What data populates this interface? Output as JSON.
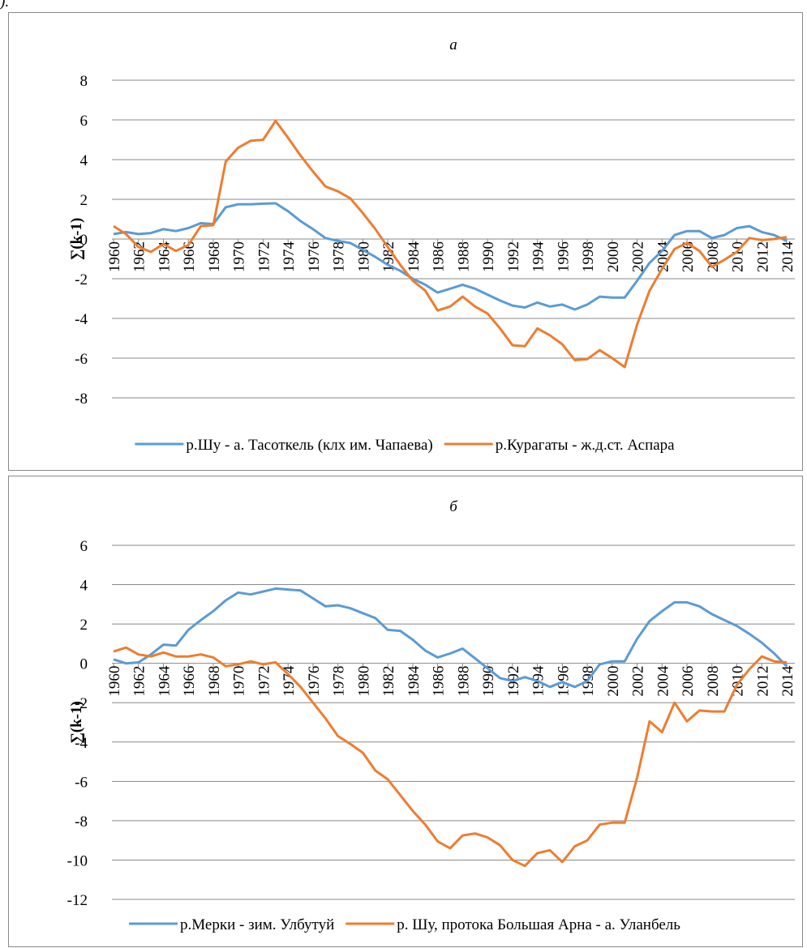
{
  "fragment": ").",
  "chart_data": [
    {
      "type": "line",
      "title": "а",
      "ylabel": "∑(k-1)",
      "x": [
        1960,
        1961,
        1962,
        1963,
        1964,
        1965,
        1966,
        1967,
        1968,
        1969,
        1970,
        1971,
        1972,
        1973,
        1974,
        1975,
        1976,
        1977,
        1978,
        1979,
        1980,
        1981,
        1982,
        1983,
        1984,
        1985,
        1986,
        1987,
        1988,
        1989,
        1990,
        1991,
        1992,
        1993,
        1994,
        1995,
        1996,
        1997,
        1998,
        1999,
        2000,
        2001,
        2002,
        2003,
        2004,
        2005,
        2006,
        2007,
        2008,
        2009,
        2010,
        2011,
        2012,
        2013,
        2014
      ],
      "xlim": [
        1960,
        2014
      ],
      "xticks": [
        1960,
        1962,
        1964,
        1966,
        1968,
        1970,
        1972,
        1974,
        1976,
        1978,
        1980,
        1982,
        1984,
        1986,
        1988,
        1990,
        1992,
        1994,
        1996,
        1998,
        2000,
        2002,
        2004,
        2006,
        2008,
        2010,
        2012,
        2014
      ],
      "ylim": [
        -8,
        8
      ],
      "yticks": [
        -8,
        -6,
        -4,
        -2,
        0,
        2,
        4,
        6,
        8
      ],
      "grid": true,
      "legend": "bottom",
      "series": [
        {
          "name": "р.Шу - а. Тасоткель (клх им. Чапаева)",
          "color": "#5b9bd5",
          "values": [
            0.25,
            0.35,
            0.25,
            0.3,
            0.5,
            0.4,
            0.55,
            0.8,
            0.75,
            1.6,
            1.75,
            1.75,
            1.78,
            1.8,
            1.4,
            0.9,
            0.5,
            0.05,
            -0.1,
            -0.2,
            -0.55,
            -0.9,
            -1.3,
            -1.6,
            -2.0,
            -2.3,
            -2.7,
            -2.5,
            -2.3,
            -2.5,
            -2.8,
            -3.1,
            -3.35,
            -3.45,
            -3.2,
            -3.4,
            -3.3,
            -3.55,
            -3.3,
            -2.9,
            -2.95,
            -2.95,
            -2.1,
            -1.2,
            -0.6,
            0.2,
            0.4,
            0.4,
            0.05,
            0.2,
            0.55,
            0.65,
            0.35,
            0.2,
            -0.1
          ]
        },
        {
          "name": "р.Курагаты - ж.д.ст. Аспара",
          "color": "#ed7d31",
          "values": [
            0.65,
            0.25,
            -0.4,
            -0.65,
            -0.25,
            -0.6,
            -0.3,
            0.65,
            0.7,
            3.9,
            4.6,
            4.95,
            5.0,
            5.95,
            5.1,
            4.2,
            3.4,
            2.65,
            2.4,
            2.05,
            1.3,
            0.5,
            -0.4,
            -1.3,
            -2.1,
            -2.6,
            -3.6,
            -3.4,
            -2.9,
            -3.4,
            -3.75,
            -4.5,
            -5.35,
            -5.4,
            -4.5,
            -4.85,
            -5.3,
            -6.1,
            -6.05,
            -5.6,
            -6.0,
            -6.45,
            -4.3,
            -2.6,
            -1.5,
            -0.5,
            -0.2,
            -0.6,
            -1.4,
            -1.05,
            -0.65,
            0.05,
            -0.05,
            0.0,
            0.1
          ]
        }
      ]
    },
    {
      "type": "line",
      "title": "б",
      "ylabel": "∑(k-1)",
      "x": [
        1960,
        1961,
        1962,
        1963,
        1964,
        1965,
        1966,
        1967,
        1968,
        1969,
        1970,
        1971,
        1972,
        1973,
        1974,
        1975,
        1976,
        1977,
        1978,
        1979,
        1980,
        1981,
        1982,
        1983,
        1984,
        1985,
        1986,
        1987,
        1988,
        1989,
        1990,
        1991,
        1992,
        1993,
        1994,
        1995,
        1996,
        1997,
        1998,
        1999,
        2000,
        2001,
        2002,
        2003,
        2004,
        2005,
        2006,
        2007,
        2008,
        2009,
        2010,
        2011,
        2012,
        2013,
        2014
      ],
      "xlim": [
        1960,
        2014
      ],
      "xticks": [
        1960,
        1962,
        1964,
        1966,
        1968,
        1970,
        1972,
        1974,
        1976,
        1978,
        1980,
        1982,
        1984,
        1986,
        1988,
        1990,
        1992,
        1994,
        1996,
        1998,
        2000,
        2002,
        2004,
        2006,
        2008,
        2010,
        2012,
        2014
      ],
      "ylim": [
        -12,
        6
      ],
      "yticks": [
        -12,
        -10,
        -8,
        -6,
        -4,
        -2,
        0,
        2,
        4,
        6
      ],
      "grid": true,
      "legend": "bottom",
      "series": [
        {
          "name": "р.Мерки - зим. Улбутуй",
          "color": "#5b9bd5",
          "values": [
            0.2,
            0.0,
            0.05,
            0.45,
            0.95,
            0.9,
            1.7,
            2.2,
            2.65,
            3.2,
            3.6,
            3.5,
            3.65,
            3.8,
            3.75,
            3.7,
            3.3,
            2.9,
            2.95,
            2.8,
            2.55,
            2.3,
            1.7,
            1.65,
            1.2,
            0.65,
            0.3,
            0.5,
            0.75,
            0.25,
            -0.25,
            -0.75,
            -0.9,
            -0.7,
            -0.9,
            -1.2,
            -0.95,
            -1.2,
            -0.9,
            -0.05,
            0.1,
            0.1,
            1.25,
            2.15,
            2.65,
            3.1,
            3.1,
            2.9,
            2.5,
            2.2,
            1.9,
            1.5,
            1.05,
            0.5,
            -0.15
          ]
        },
        {
          "name": "р. Шу, протока Большая Арна - а. Уланбель",
          "color": "#ed7d31",
          "values": [
            0.6,
            0.8,
            0.45,
            0.35,
            0.55,
            0.35,
            0.35,
            0.45,
            0.3,
            -0.15,
            -0.05,
            0.1,
            -0.05,
            0.05,
            -0.55,
            -1.2,
            -2.0,
            -2.8,
            -3.7,
            -4.1,
            -4.55,
            -5.45,
            -5.9,
            -6.7,
            -7.5,
            -8.2,
            -9.05,
            -9.4,
            -8.75,
            -8.65,
            -8.85,
            -9.25,
            -10.0,
            -10.3,
            -9.65,
            -9.5,
            -10.1,
            -9.3,
            -9.0,
            -8.2,
            -8.1,
            -8.1,
            -5.8,
            -2.95,
            -3.5,
            -2.0,
            -2.95,
            -2.4,
            -2.45,
            -2.45,
            -1.1,
            -0.3,
            0.35,
            0.1,
            0.05
          ]
        }
      ]
    }
  ]
}
